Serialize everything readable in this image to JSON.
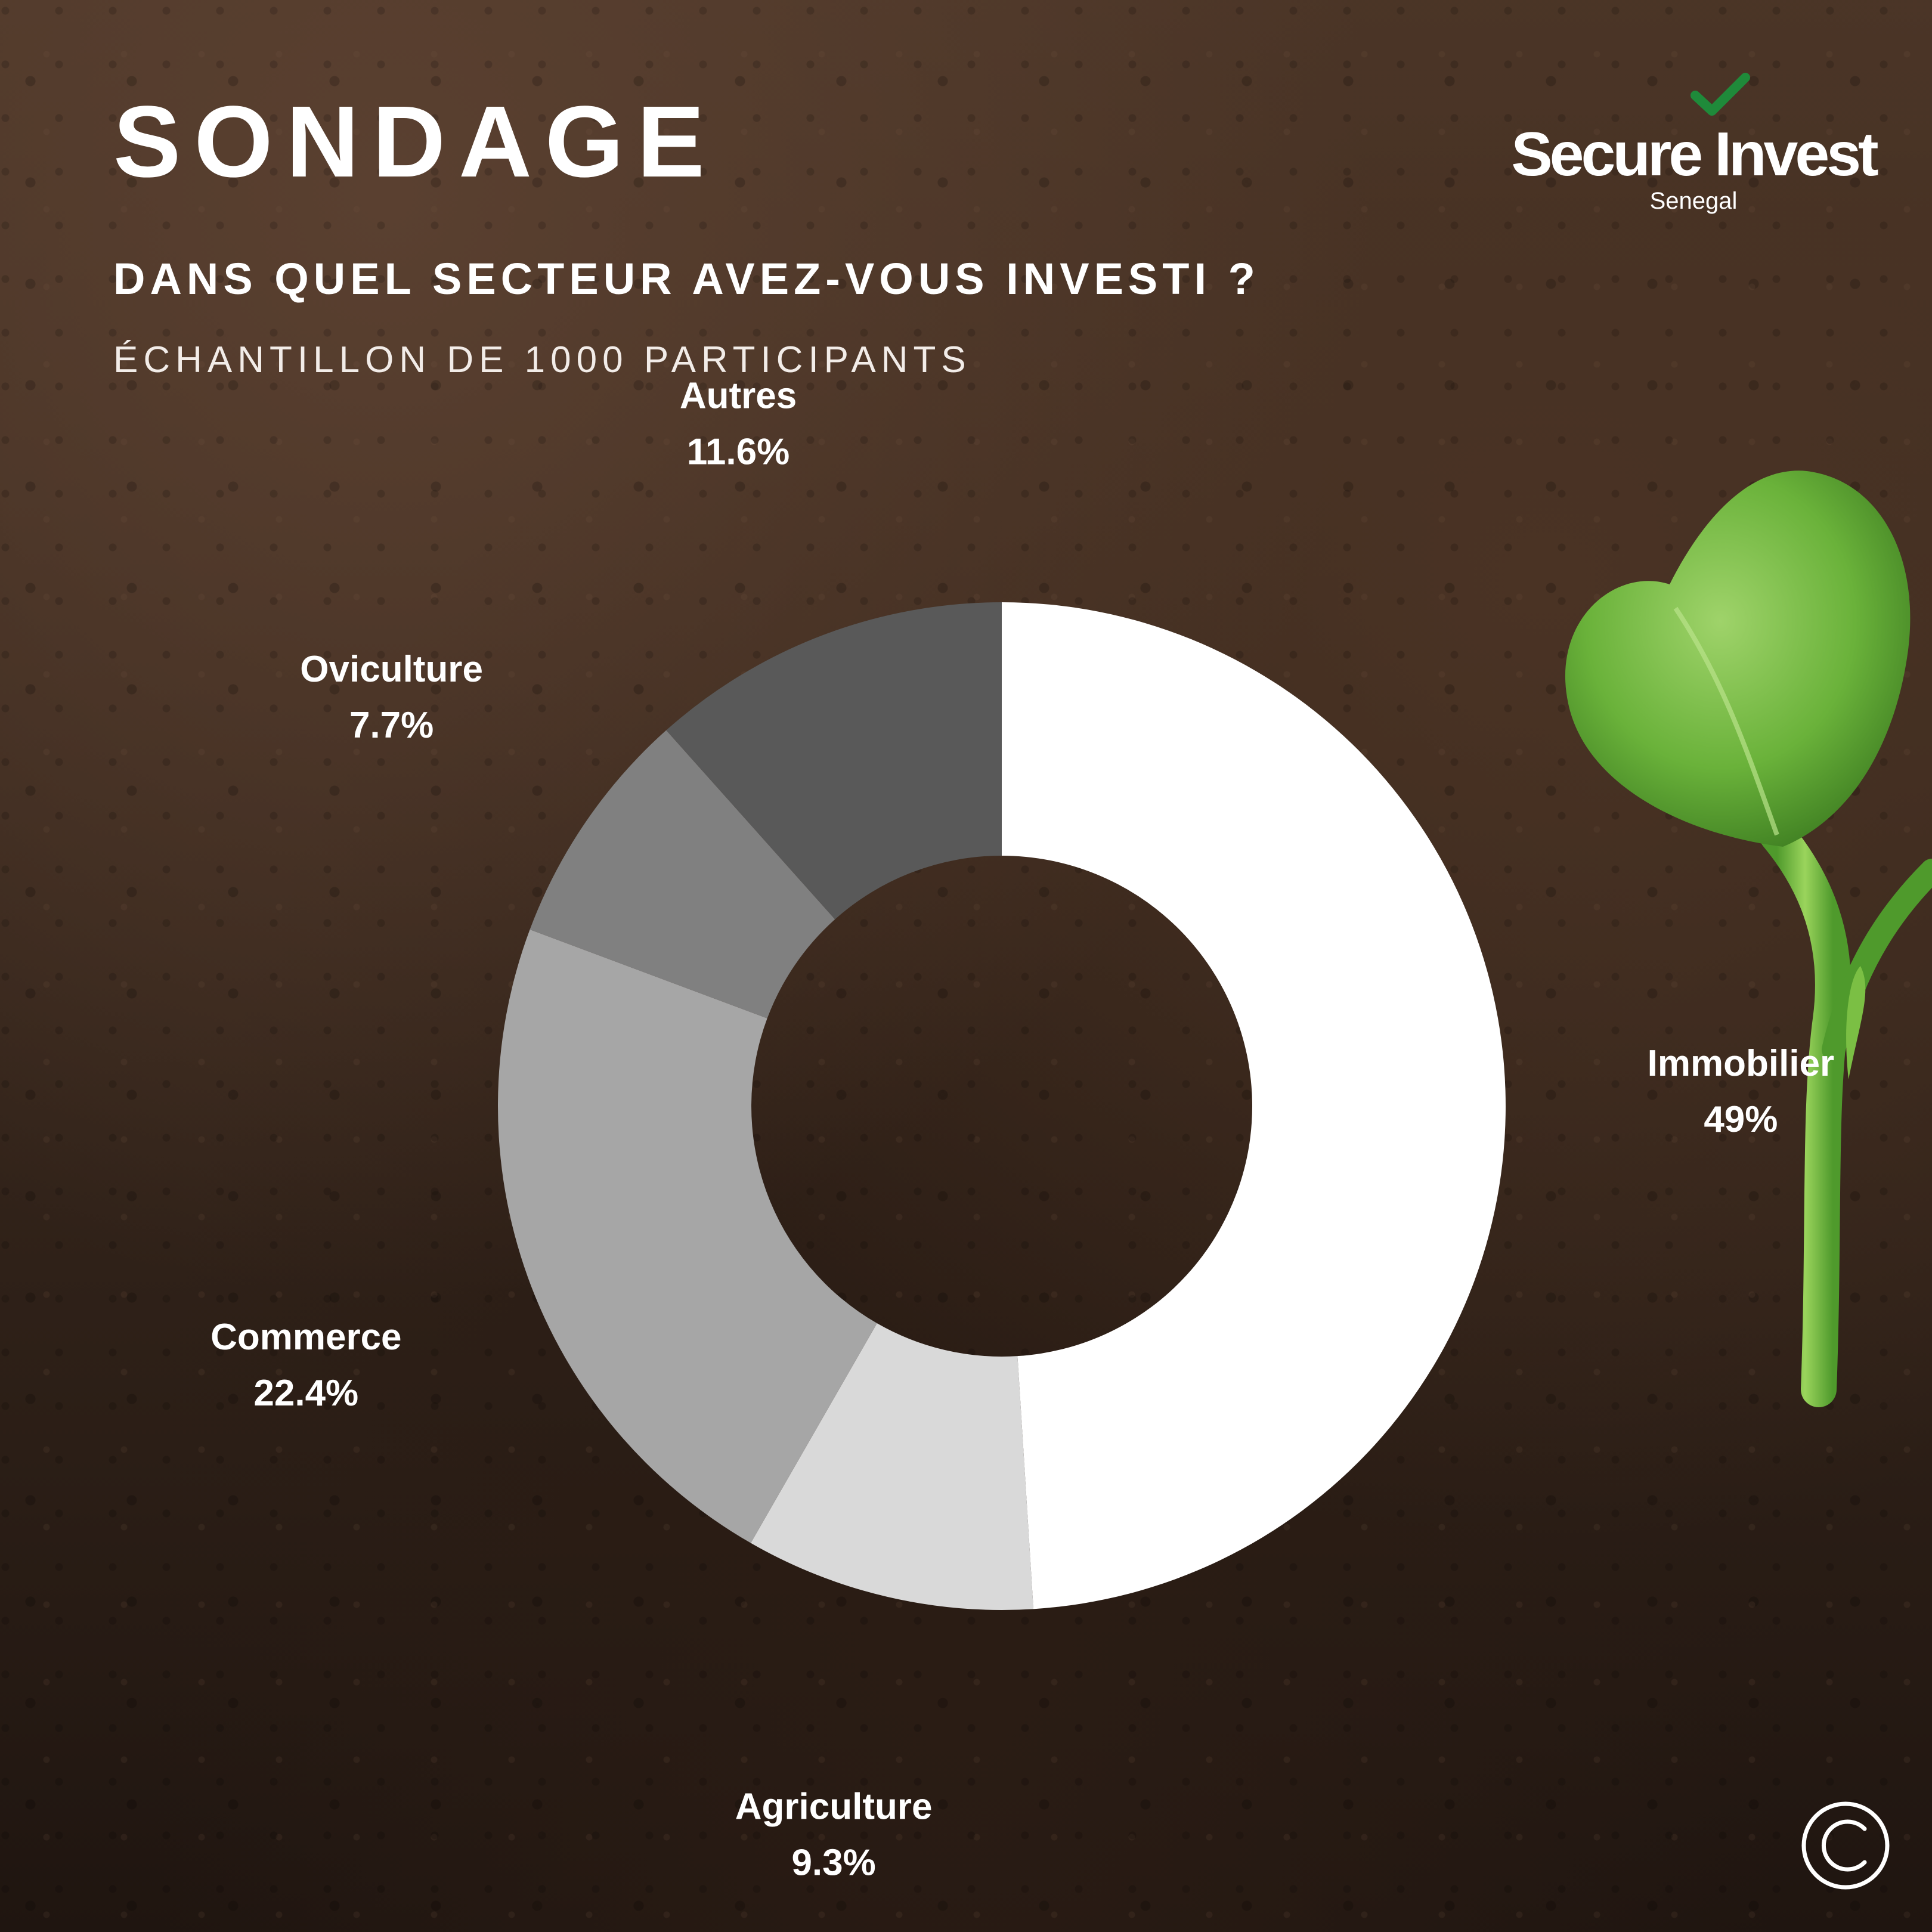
{
  "header": {
    "title": "SONDAGE",
    "question": "DANS QUEL SECTEUR AVEZ-VOUS INVESTI ?",
    "subtitle": "ÉCHANTILLON DE 1000 PARTICIPANTS"
  },
  "logo": {
    "name": "Secure Invest",
    "country": "Senegal",
    "icon": "checkmark-icon",
    "check_color": "#1f8a3a"
  },
  "footer": {
    "icon": "copyright-icon"
  },
  "chart_data": {
    "type": "pie",
    "style": "donut",
    "slices": [
      {
        "label": "Immobilier",
        "value": 49,
        "display": "49%",
        "color": "#ffffff"
      },
      {
        "label": "Agriculture",
        "value": 9.3,
        "display": "9.3%",
        "color": "#d9d9d9"
      },
      {
        "label": "Commerce",
        "value": 22.4,
        "display": "22.4%",
        "color": "#a6a6a6"
      },
      {
        "label": "Oviculture",
        "value": 7.7,
        "display": "7.7%",
        "color": "#808080"
      },
      {
        "label": "Autres",
        "value": 11.6,
        "display": "11.6%",
        "color": "#595959"
      }
    ]
  }
}
